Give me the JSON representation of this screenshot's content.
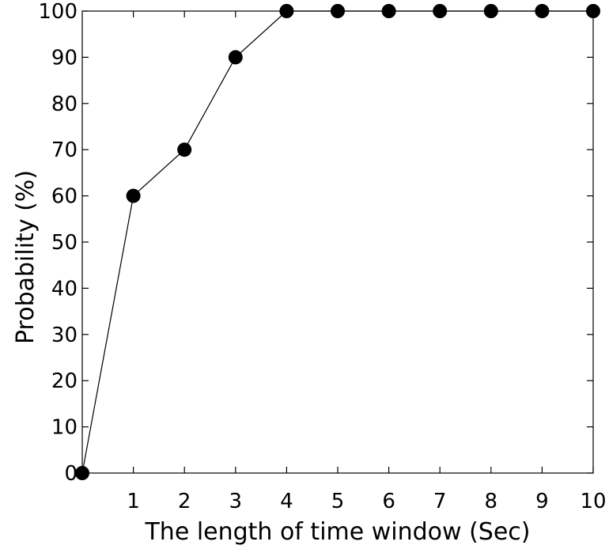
{
  "chart_data": {
    "type": "line",
    "title": "",
    "xlabel": "The length of time window (Sec)",
    "ylabel": "Probability (%)",
    "xlim": [
      0,
      10
    ],
    "ylim": [
      0,
      100
    ],
    "xticks": [
      1,
      2,
      3,
      4,
      5,
      6,
      7,
      8,
      9,
      10
    ],
    "yticks": [
      0,
      10,
      20,
      30,
      40,
      50,
      60,
      70,
      80,
      90,
      100
    ],
    "grid": false,
    "series": [
      {
        "x": [
          0,
          1,
          2,
          3,
          4,
          5,
          6,
          7,
          8,
          9,
          10
        ],
        "values": [
          0,
          60,
          70,
          90,
          100,
          100,
          100,
          100,
          100,
          100,
          100
        ],
        "color": "#000000",
        "marker": "filled-circle"
      }
    ]
  }
}
